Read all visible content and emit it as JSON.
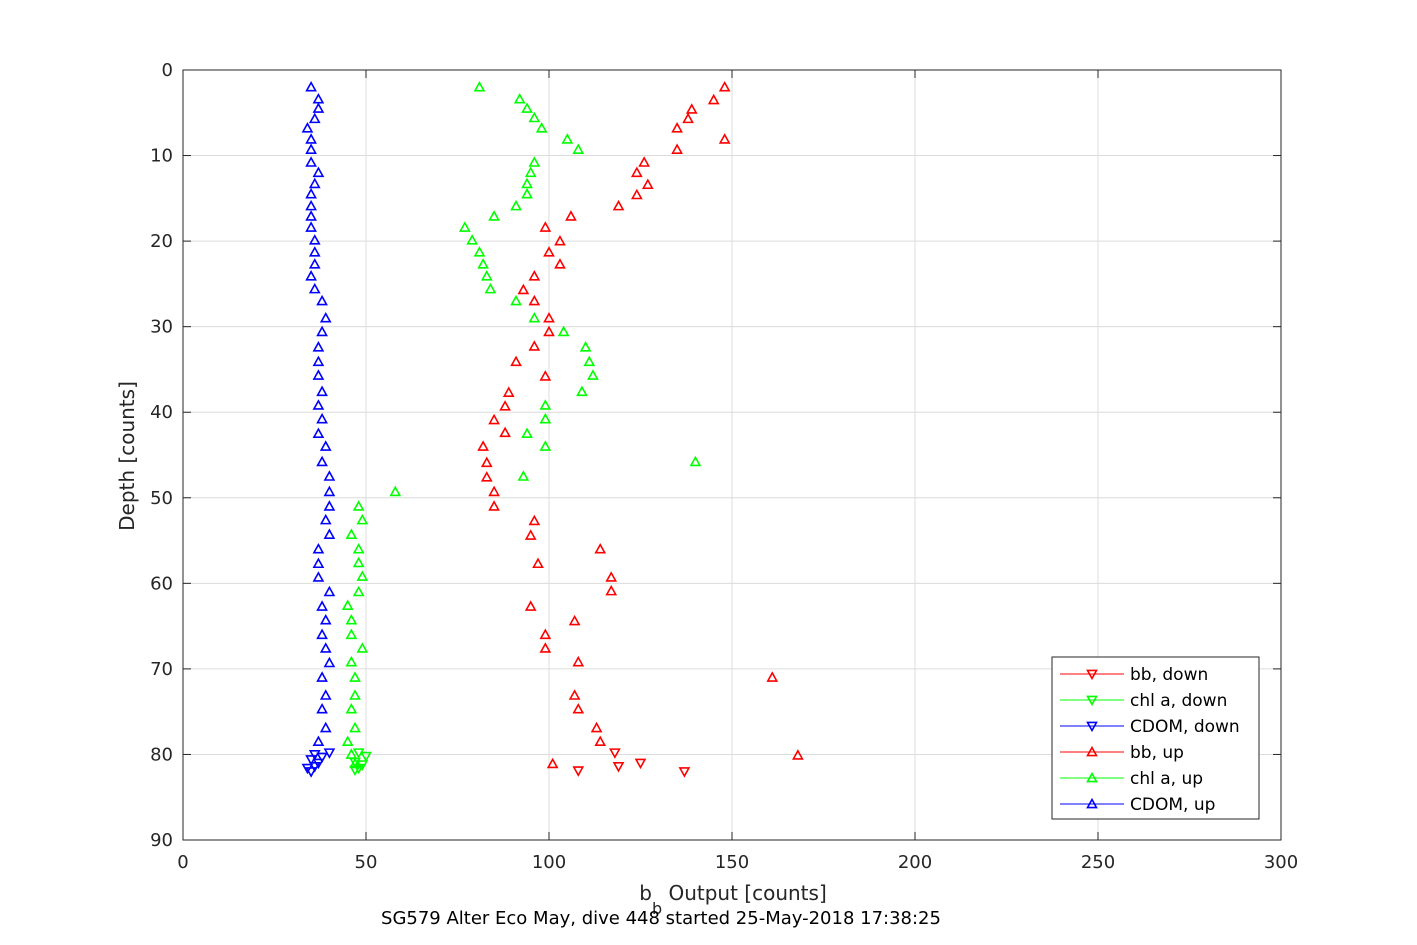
{
  "chart_data": {
    "type": "scatter",
    "xlabel_main": "b",
    "xlabel_sub": "b",
    "xlabel_rest": " Output [counts]",
    "ylabel": "Depth [counts]",
    "caption": "SG579 Alter Eco May, dive 448 started 25-May-2018 17:38:25",
    "xlim": [
      0,
      300
    ],
    "ylim": [
      0,
      90
    ],
    "y_reversed": true,
    "grid": true,
    "legend_position": "bottom-right",
    "x_ticks": [
      "0",
      "50",
      "100",
      "150",
      "200",
      "250",
      "300"
    ],
    "y_ticks": [
      "0",
      "10",
      "20",
      "30",
      "40",
      "50",
      "60",
      "70",
      "80",
      "90"
    ],
    "series": [
      {
        "name": "bb, down",
        "color": "#ff0000",
        "marker": "triangle-down",
        "points": [
          [
            108,
            81.9
          ],
          [
            119,
            81.4
          ],
          [
            125,
            81.0
          ],
          [
            137,
            82.0
          ],
          [
            118,
            79.8
          ]
        ]
      },
      {
        "name": "chl a, down",
        "color": "#00ff00",
        "marker": "triangle-down",
        "points": [
          [
            47,
            81.8
          ],
          [
            48,
            81.6
          ],
          [
            49,
            81.2
          ],
          [
            47,
            80.9
          ],
          [
            50,
            80.2
          ],
          [
            48,
            79.8
          ]
        ]
      },
      {
        "name": "CDOM, down",
        "color": "#0000ff",
        "marker": "triangle-down",
        "points": [
          [
            35,
            82.0
          ],
          [
            34,
            81.6
          ],
          [
            36,
            81.4
          ],
          [
            37,
            81.0
          ],
          [
            35,
            80.6
          ],
          [
            38,
            80.3
          ],
          [
            36,
            80.0
          ],
          [
            40,
            79.8
          ]
        ]
      },
      {
        "name": "bb, up",
        "color": "#ff0000",
        "marker": "triangle-up",
        "points": [
          [
            148,
            2.0
          ],
          [
            145,
            3.5
          ],
          [
            139,
            4.6
          ],
          [
            138,
            5.7
          ],
          [
            135,
            6.8
          ],
          [
            148,
            8.1
          ],
          [
            135,
            9.3
          ],
          [
            126,
            10.8
          ],
          [
            124,
            12.0
          ],
          [
            127,
            13.4
          ],
          [
            124,
            14.6
          ],
          [
            119,
            15.9
          ],
          [
            106,
            17.1
          ],
          [
            99,
            18.4
          ],
          [
            103,
            20.0
          ],
          [
            100,
            21.3
          ],
          [
            103,
            22.7
          ],
          [
            96,
            24.1
          ],
          [
            93,
            25.7
          ],
          [
            96,
            27.0
          ],
          [
            100,
            29.0
          ],
          [
            100,
            30.6
          ],
          [
            96,
            32.3
          ],
          [
            91,
            34.1
          ],
          [
            99,
            35.8
          ],
          [
            89,
            37.7
          ],
          [
            88,
            39.3
          ],
          [
            85,
            40.9
          ],
          [
            88,
            42.4
          ],
          [
            82,
            44.0
          ],
          [
            83,
            45.9
          ],
          [
            83,
            47.6
          ],
          [
            85,
            49.3
          ],
          [
            85,
            51.0
          ],
          [
            96,
            52.7
          ],
          [
            95,
            54.4
          ],
          [
            97,
            57.7
          ],
          [
            114,
            56.0
          ],
          [
            117,
            59.3
          ],
          [
            117,
            60.9
          ],
          [
            95,
            62.7
          ],
          [
            107,
            64.4
          ],
          [
            99,
            66.0
          ],
          [
            99,
            67.6
          ],
          [
            108,
            69.2
          ],
          [
            161,
            71.0
          ],
          [
            107,
            73.1
          ],
          [
            108,
            74.7
          ],
          [
            113,
            76.9
          ],
          [
            114,
            78.5
          ],
          [
            168,
            80.1
          ],
          [
            101,
            81.1
          ]
        ]
      },
      {
        "name": "chl a, up",
        "color": "#00ff00",
        "marker": "triangle-up",
        "points": [
          [
            81,
            2.0
          ],
          [
            92,
            3.4
          ],
          [
            94,
            4.5
          ],
          [
            96,
            5.6
          ],
          [
            98,
            6.8
          ],
          [
            105,
            8.1
          ],
          [
            108,
            9.3
          ],
          [
            96,
            10.8
          ],
          [
            95,
            12.0
          ],
          [
            94,
            13.3
          ],
          [
            94,
            14.5
          ],
          [
            91,
            15.9
          ],
          [
            85,
            17.1
          ],
          [
            77,
            18.4
          ],
          [
            79,
            19.9
          ],
          [
            81,
            21.3
          ],
          [
            82,
            22.7
          ],
          [
            83,
            24.1
          ],
          [
            84,
            25.6
          ],
          [
            91,
            27.0
          ],
          [
            96,
            29.0
          ],
          [
            104,
            30.6
          ],
          [
            110,
            32.4
          ],
          [
            111,
            34.1
          ],
          [
            112,
            35.7
          ],
          [
            109,
            37.6
          ],
          [
            99,
            39.2
          ],
          [
            99,
            40.8
          ],
          [
            94,
            42.5
          ],
          [
            99,
            44.0
          ],
          [
            140,
            45.8
          ],
          [
            93,
            47.5
          ],
          [
            58,
            49.3
          ],
          [
            48,
            51.0
          ],
          [
            49,
            52.6
          ],
          [
            46,
            54.3
          ],
          [
            48,
            56.0
          ],
          [
            48,
            57.6
          ],
          [
            49,
            59.2
          ],
          [
            48,
            61.0
          ],
          [
            45,
            62.6
          ],
          [
            46,
            64.3
          ],
          [
            46,
            66.0
          ],
          [
            49,
            67.6
          ],
          [
            46,
            69.2
          ],
          [
            47,
            71.0
          ],
          [
            47,
            73.1
          ],
          [
            46,
            74.7
          ],
          [
            47,
            76.9
          ],
          [
            45,
            78.5
          ],
          [
            46,
            80.0
          ],
          [
            47,
            81.1
          ]
        ]
      },
      {
        "name": "CDOM, up",
        "color": "#0000ff",
        "marker": "triangle-up",
        "points": [
          [
            35,
            2.0
          ],
          [
            37,
            3.4
          ],
          [
            37,
            4.5
          ],
          [
            36,
            5.7
          ],
          [
            34,
            6.8
          ],
          [
            35,
            8.1
          ],
          [
            35,
            9.3
          ],
          [
            35,
            10.8
          ],
          [
            37,
            12.0
          ],
          [
            36,
            13.3
          ],
          [
            35,
            14.5
          ],
          [
            35,
            15.9
          ],
          [
            35,
            17.1
          ],
          [
            35,
            18.4
          ],
          [
            36,
            19.9
          ],
          [
            36,
            21.3
          ],
          [
            36,
            22.7
          ],
          [
            35,
            24.1
          ],
          [
            36,
            25.6
          ],
          [
            38,
            27.0
          ],
          [
            39,
            29.0
          ],
          [
            38,
            30.6
          ],
          [
            37,
            32.4
          ],
          [
            37,
            34.1
          ],
          [
            37,
            35.7
          ],
          [
            38,
            37.6
          ],
          [
            37,
            39.2
          ],
          [
            38,
            40.8
          ],
          [
            37,
            42.5
          ],
          [
            39,
            44.0
          ],
          [
            38,
            45.8
          ],
          [
            40,
            47.5
          ],
          [
            40,
            49.3
          ],
          [
            40,
            51.0
          ],
          [
            39,
            52.6
          ],
          [
            40,
            54.3
          ],
          [
            37,
            56.0
          ],
          [
            37,
            57.7
          ],
          [
            37,
            59.3
          ],
          [
            40,
            61.0
          ],
          [
            38,
            62.7
          ],
          [
            39,
            64.3
          ],
          [
            38,
            66.0
          ],
          [
            39,
            67.6
          ],
          [
            40,
            69.3
          ],
          [
            38,
            71.0
          ],
          [
            39,
            73.1
          ],
          [
            38,
            74.7
          ],
          [
            39,
            76.9
          ],
          [
            37,
            78.5
          ]
        ]
      }
    ]
  }
}
